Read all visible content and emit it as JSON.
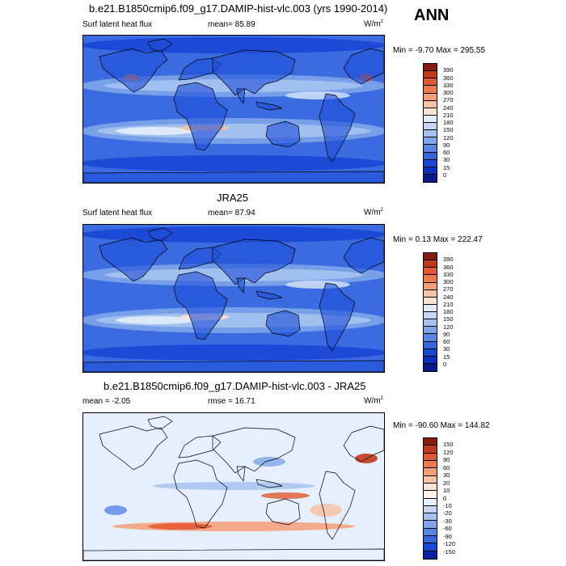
{
  "season": "ANN",
  "panels": [
    {
      "title": "b.e21.B1850cmip6.f09_g17.DAMIP-hist-vlc.003 (yrs 1990-2014)",
      "left_label": "Surf latent heat flux",
      "center_label": "mean=  85.89",
      "units_base": "W/m",
      "units_exp": "2",
      "minmax": "Min =  -9.70 Max = 295.55",
      "colorbar_labels": [
        "390",
        "360",
        "330",
        "300",
        "270",
        "240",
        "210",
        "180",
        "150",
        "120",
        "90",
        "60",
        "30",
        "15",
        "0"
      ],
      "colorbar_colors": [
        "#8b1a0e",
        "#c0391b",
        "#e0582f",
        "#ef7a4c",
        "#f59d76",
        "#f8c2a4",
        "#fbe3d2",
        "#e3ecf9",
        "#c5d7f5",
        "#a5c2f0",
        "#7ea6ea",
        "#5887e3",
        "#3566de",
        "#1a46d4",
        "#0c2fc0",
        "#061a8c"
      ],
      "map_style": "model"
    },
    {
      "title": "JRA25",
      "left_label": "Surf latent heat flux",
      "center_label": "mean=  87.94",
      "units_base": "W/m",
      "units_exp": "2",
      "minmax": "Min =   0.13 Max = 222.47",
      "colorbar_labels": [
        "390",
        "360",
        "330",
        "300",
        "270",
        "240",
        "210",
        "180",
        "150",
        "120",
        "90",
        "60",
        "30",
        "15",
        "0"
      ],
      "colorbar_colors": [
        "#8b1a0e",
        "#c0391b",
        "#e0582f",
        "#ef7a4c",
        "#f59d76",
        "#f8c2a4",
        "#fbe3d2",
        "#e3ecf9",
        "#c5d7f5",
        "#a5c2f0",
        "#7ea6ea",
        "#5887e3",
        "#3566de",
        "#1a46d4",
        "#0c2fc0",
        "#061a8c"
      ],
      "map_style": "obs"
    },
    {
      "title": "b.e21.B1850cmip6.f09_g17.DAMIP-hist-vlc.003 - JRA25",
      "left_label": "mean =  -2.05",
      "center_label": "rmse =  16.71",
      "units_base": "W/m",
      "units_exp": "2",
      "minmax": "Min = -90.60 Max = 144.82",
      "colorbar_labels": [
        "150",
        "120",
        "90",
        "60",
        "30",
        "20",
        "10",
        "0",
        "-10",
        "-20",
        "-30",
        "-60",
        "-90",
        "-120",
        "-150"
      ],
      "colorbar_colors": [
        "#8b1a0e",
        "#c0391b",
        "#e0582f",
        "#ef7a4c",
        "#f59d76",
        "#f8c2a4",
        "#fbe3d2",
        "#fdf3ec",
        "#e6efff",
        "#c5d7f5",
        "#a5c2f0",
        "#7ea6ea",
        "#5887e3",
        "#3566de",
        "#1a46d4",
        "#0c1f9e"
      ],
      "map_style": "diff"
    }
  ]
}
